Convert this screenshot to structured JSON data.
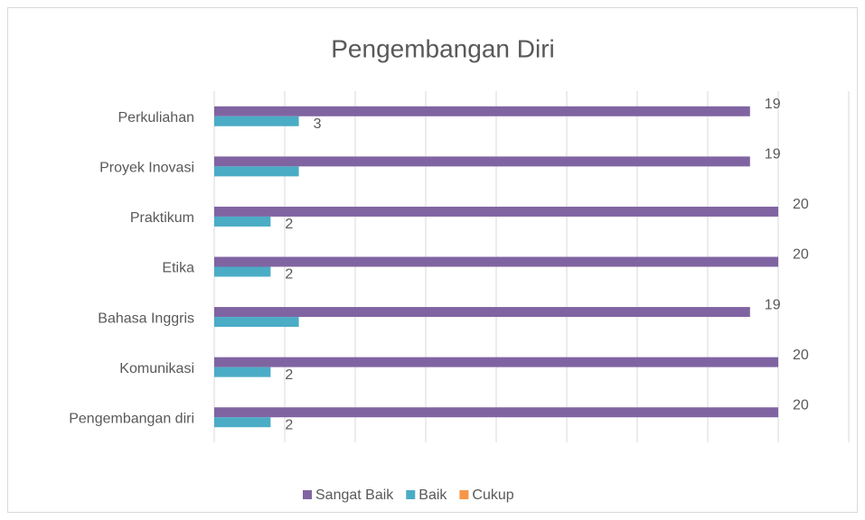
{
  "chart_data": {
    "type": "hbar",
    "title": "Pengembangan Diri",
    "categories": [
      "Perkuliahan",
      "Proyek Inovasi",
      "Praktikum",
      "Etika",
      "Bahasa Inggris",
      "Komunikasi",
      "Pengembangan diri"
    ],
    "series": [
      {
        "name": "Sangat Baik",
        "color": "#8064a2",
        "values": [
          19,
          19,
          20,
          20,
          19,
          20,
          20
        ],
        "value_labels": [
          "19",
          "19",
          "20",
          "20",
          "19",
          "20",
          "20"
        ]
      },
      {
        "name": "Baik",
        "color": "#4bacc6",
        "values": [
          3,
          3,
          2,
          2,
          3,
          2,
          2
        ],
        "value_labels": [
          "3",
          null,
          "2",
          "2",
          null,
          "2",
          "2"
        ]
      },
      {
        "name": "Cukup",
        "color": "#f79646",
        "values": [
          0,
          0,
          0,
          0,
          0,
          0,
          0
        ]
      }
    ],
    "xlim": [
      0,
      22.5
    ],
    "xticks": [
      0,
      2.5,
      5,
      7.5,
      10,
      12.5,
      15,
      17.5,
      20,
      22.5
    ],
    "grid": true,
    "legend": "bottom"
  }
}
